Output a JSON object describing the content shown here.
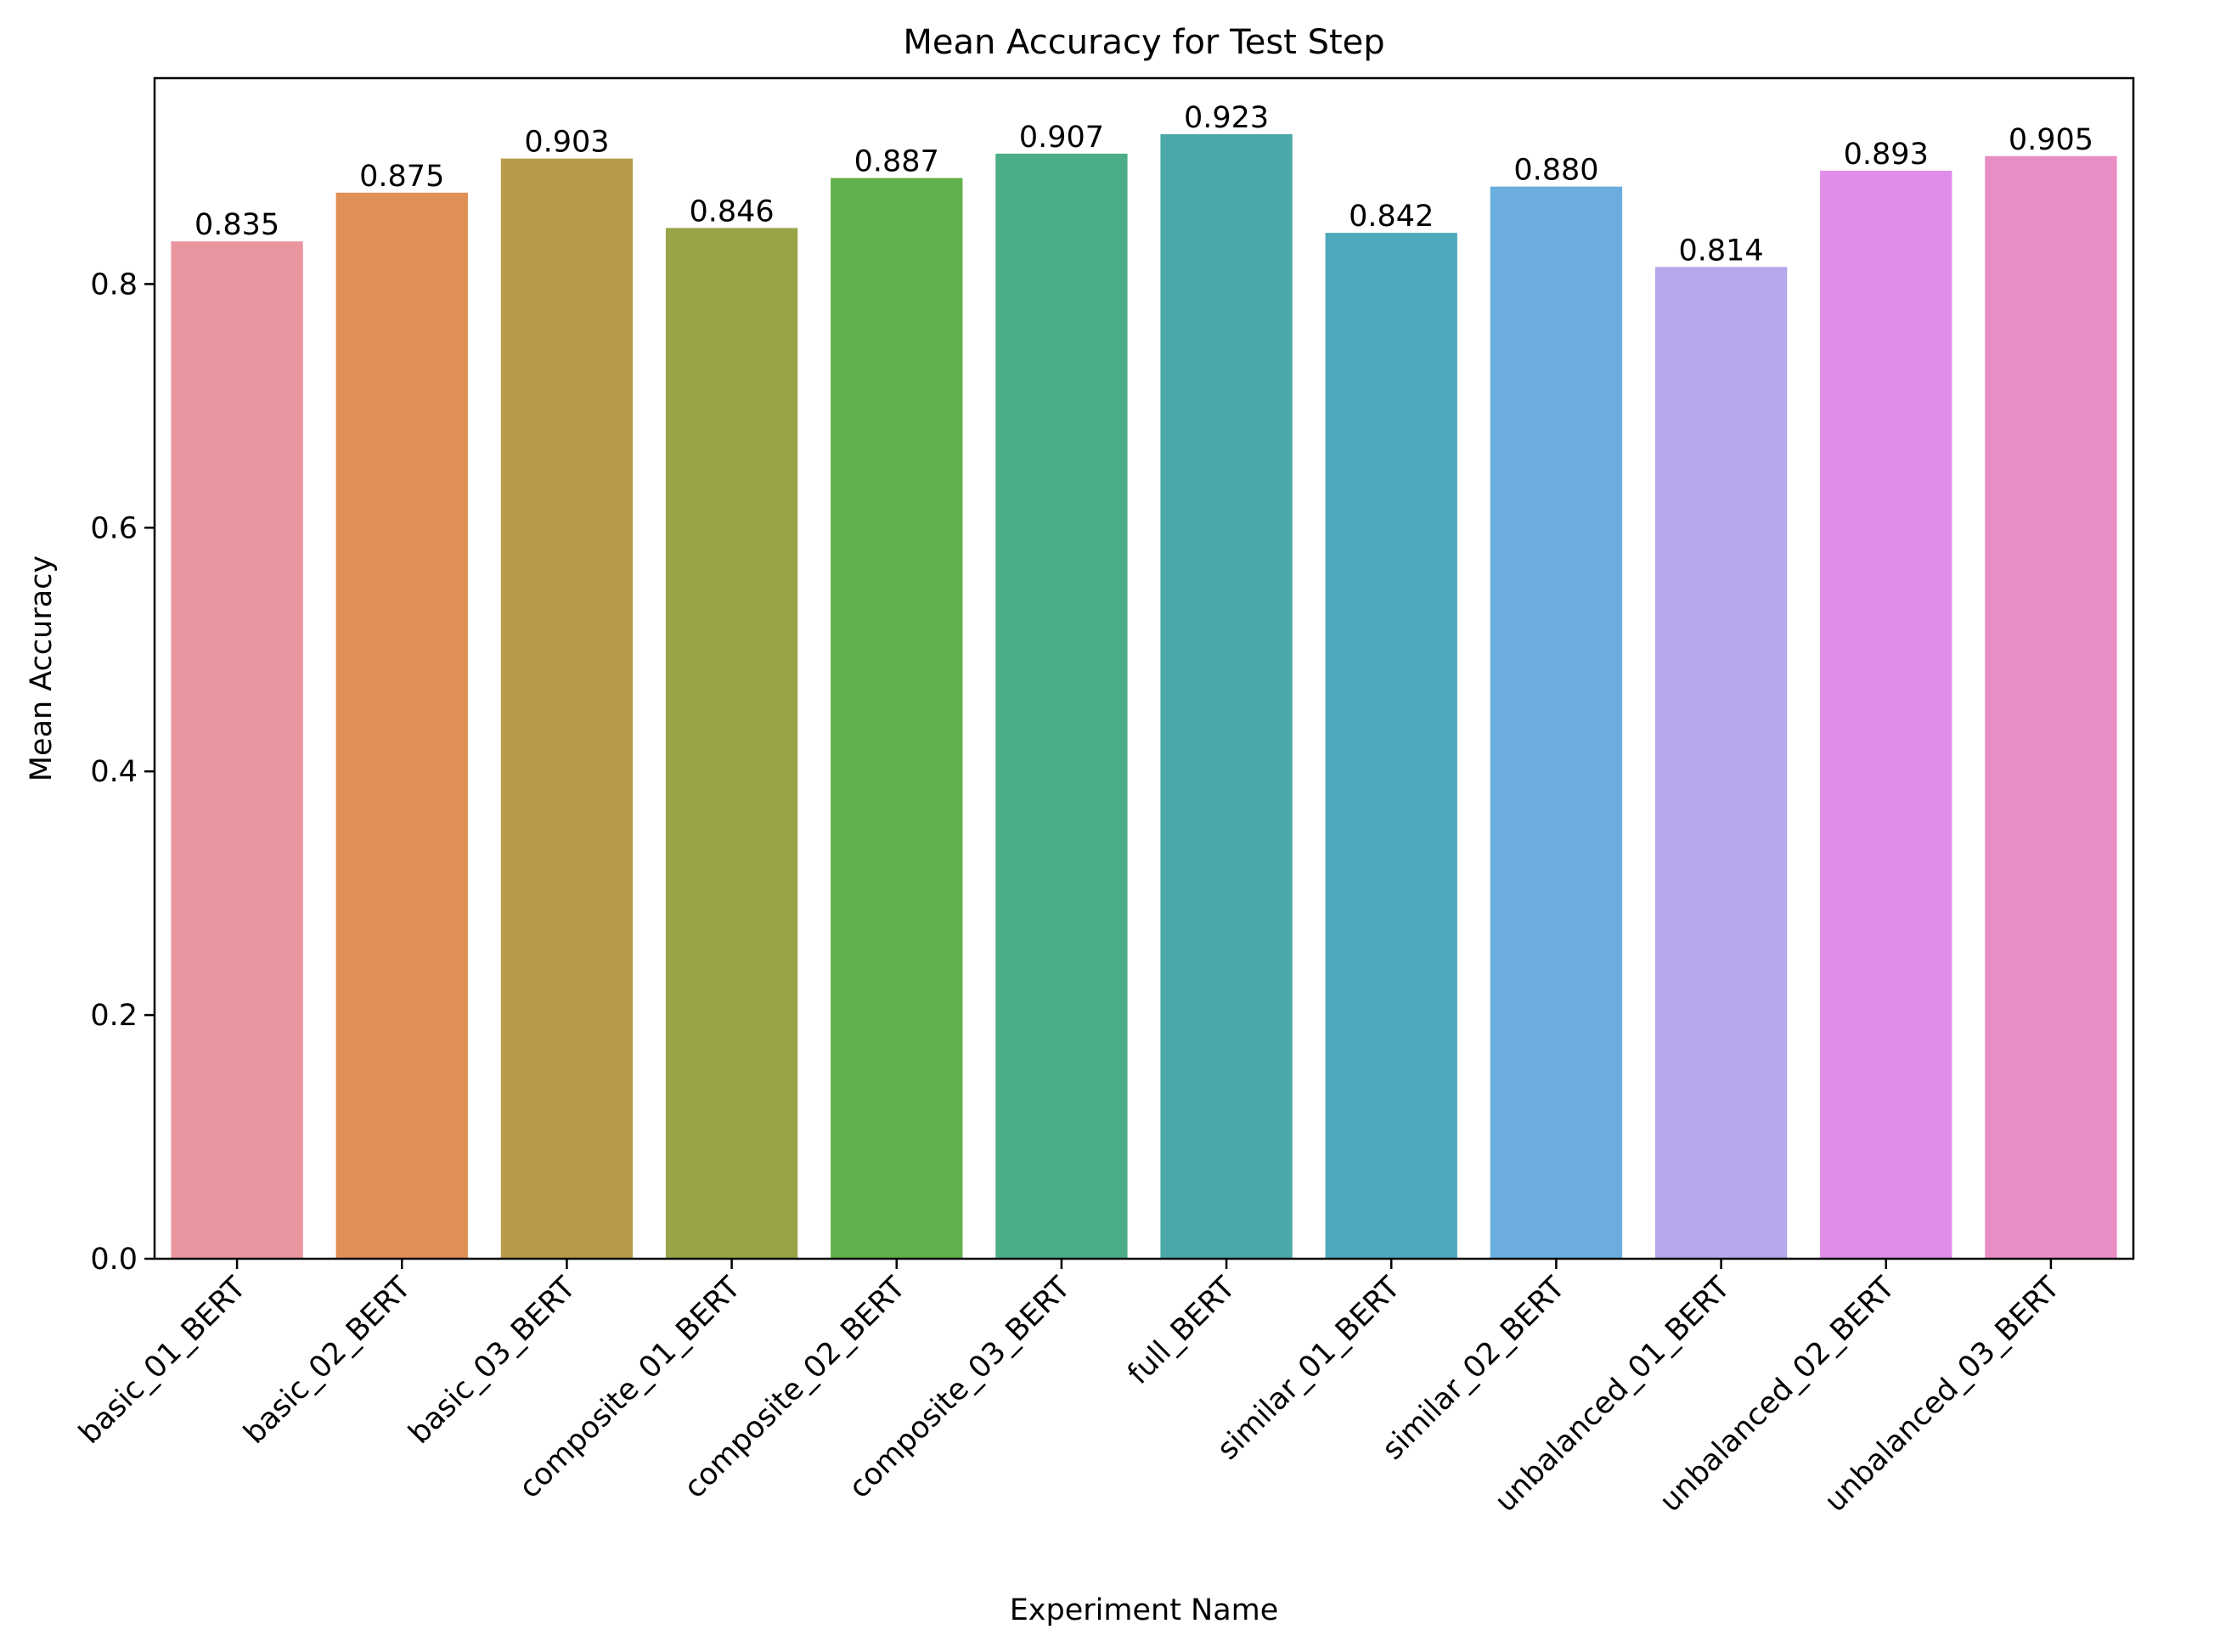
{
  "chart_data": {
    "type": "bar",
    "title": "Mean Accuracy for Test Step",
    "xlabel": "Experiment Name",
    "ylabel": "Mean Accuracy",
    "ylim": [
      0,
      0.969
    ],
    "yticks": [
      0.0,
      0.2,
      0.4,
      0.6,
      0.8
    ],
    "ytick_labels": [
      "0.0",
      "0.2",
      "0.4",
      "0.6",
      "0.8"
    ],
    "grid": false,
    "legend": "none",
    "categories": [
      "basic_01_BERT",
      "basic_02_BERT",
      "basic_03_BERT",
      "composite_01_BERT",
      "composite_02_BERT",
      "composite_03_BERT",
      "full_BERT",
      "similar_01_BERT",
      "similar_02_BERT",
      "unbalanced_01_BERT",
      "unbalanced_02_BERT",
      "unbalanced_03_BERT"
    ],
    "values": [
      0.835,
      0.875,
      0.903,
      0.846,
      0.887,
      0.907,
      0.923,
      0.842,
      0.88,
      0.814,
      0.893,
      0.905
    ],
    "value_labels": [
      "0.835",
      "0.875",
      "0.903",
      "0.846",
      "0.887",
      "0.907",
      "0.923",
      "0.842",
      "0.880",
      "0.814",
      "0.893",
      "0.905"
    ],
    "colors": [
      "#e8959f",
      "#e08f55",
      "#b79b4a",
      "#99a448",
      "#60b04b",
      "#4bae86",
      "#4aa9a8",
      "#4ea8bb",
      "#6badde",
      "#b6a7eb",
      "#df8de8",
      "#e88ec5"
    ]
  }
}
